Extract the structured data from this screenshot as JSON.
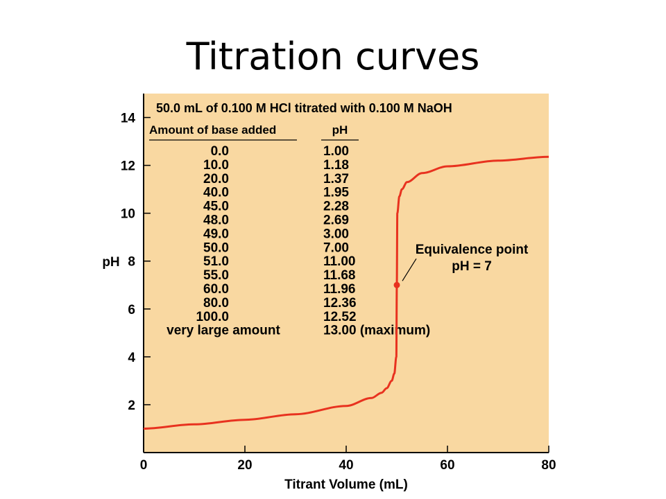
{
  "slide": {
    "title": "Titration curves"
  },
  "chart_data": {
    "type": "line",
    "title": "50.0 mL of 0.100 M HCl titrated with 0.100 M NaOH",
    "xlabel": "Titrant Volume (mL)",
    "ylabel": "pH",
    "xlim": [
      0,
      80
    ],
    "ylim": [
      0,
      15
    ],
    "x_ticks": [
      0,
      20,
      40,
      60,
      80
    ],
    "y_ticks": [
      2,
      4,
      6,
      8,
      10,
      12,
      14
    ],
    "grid": false,
    "colors": {
      "background": "#f9d8a1",
      "curve": "#e8321f",
      "point": "#e8321f"
    },
    "series": [
      {
        "x": [
          0,
          10,
          20,
          30,
          40,
          45,
          47,
          48,
          49,
          49.5,
          49.9,
          50,
          50.1,
          50.5,
          51,
          52,
          55,
          60,
          70,
          80
        ],
        "y": [
          1.0,
          1.18,
          1.37,
          1.6,
          1.95,
          2.28,
          2.5,
          2.69,
          3.0,
          3.3,
          4.0,
          7.0,
          10.0,
          10.7,
          11.0,
          11.3,
          11.68,
          11.96,
          12.2,
          12.36
        ]
      }
    ],
    "equivalence_point": {
      "x": 50,
      "y": 7,
      "label_line1": "Equivalence point",
      "label_line2": "pH = 7"
    },
    "table": {
      "headers": [
        "Amount of base added",
        "pH"
      ],
      "rows": [
        [
          "0.0",
          "1.00"
        ],
        [
          "10.0",
          "1.18"
        ],
        [
          "20.0",
          "1.37"
        ],
        [
          "40.0",
          "1.95"
        ],
        [
          "45.0",
          "2.28"
        ],
        [
          "48.0",
          "2.69"
        ],
        [
          "49.0",
          "3.00"
        ],
        [
          "50.0",
          "7.00"
        ],
        [
          "51.0",
          "11.00"
        ],
        [
          "55.0",
          "11.68"
        ],
        [
          "60.0",
          "11.96"
        ],
        [
          "80.0",
          "12.36"
        ],
        [
          "100.0",
          "12.52"
        ],
        [
          "very large amount",
          "13.00 (maximum)"
        ]
      ]
    }
  }
}
